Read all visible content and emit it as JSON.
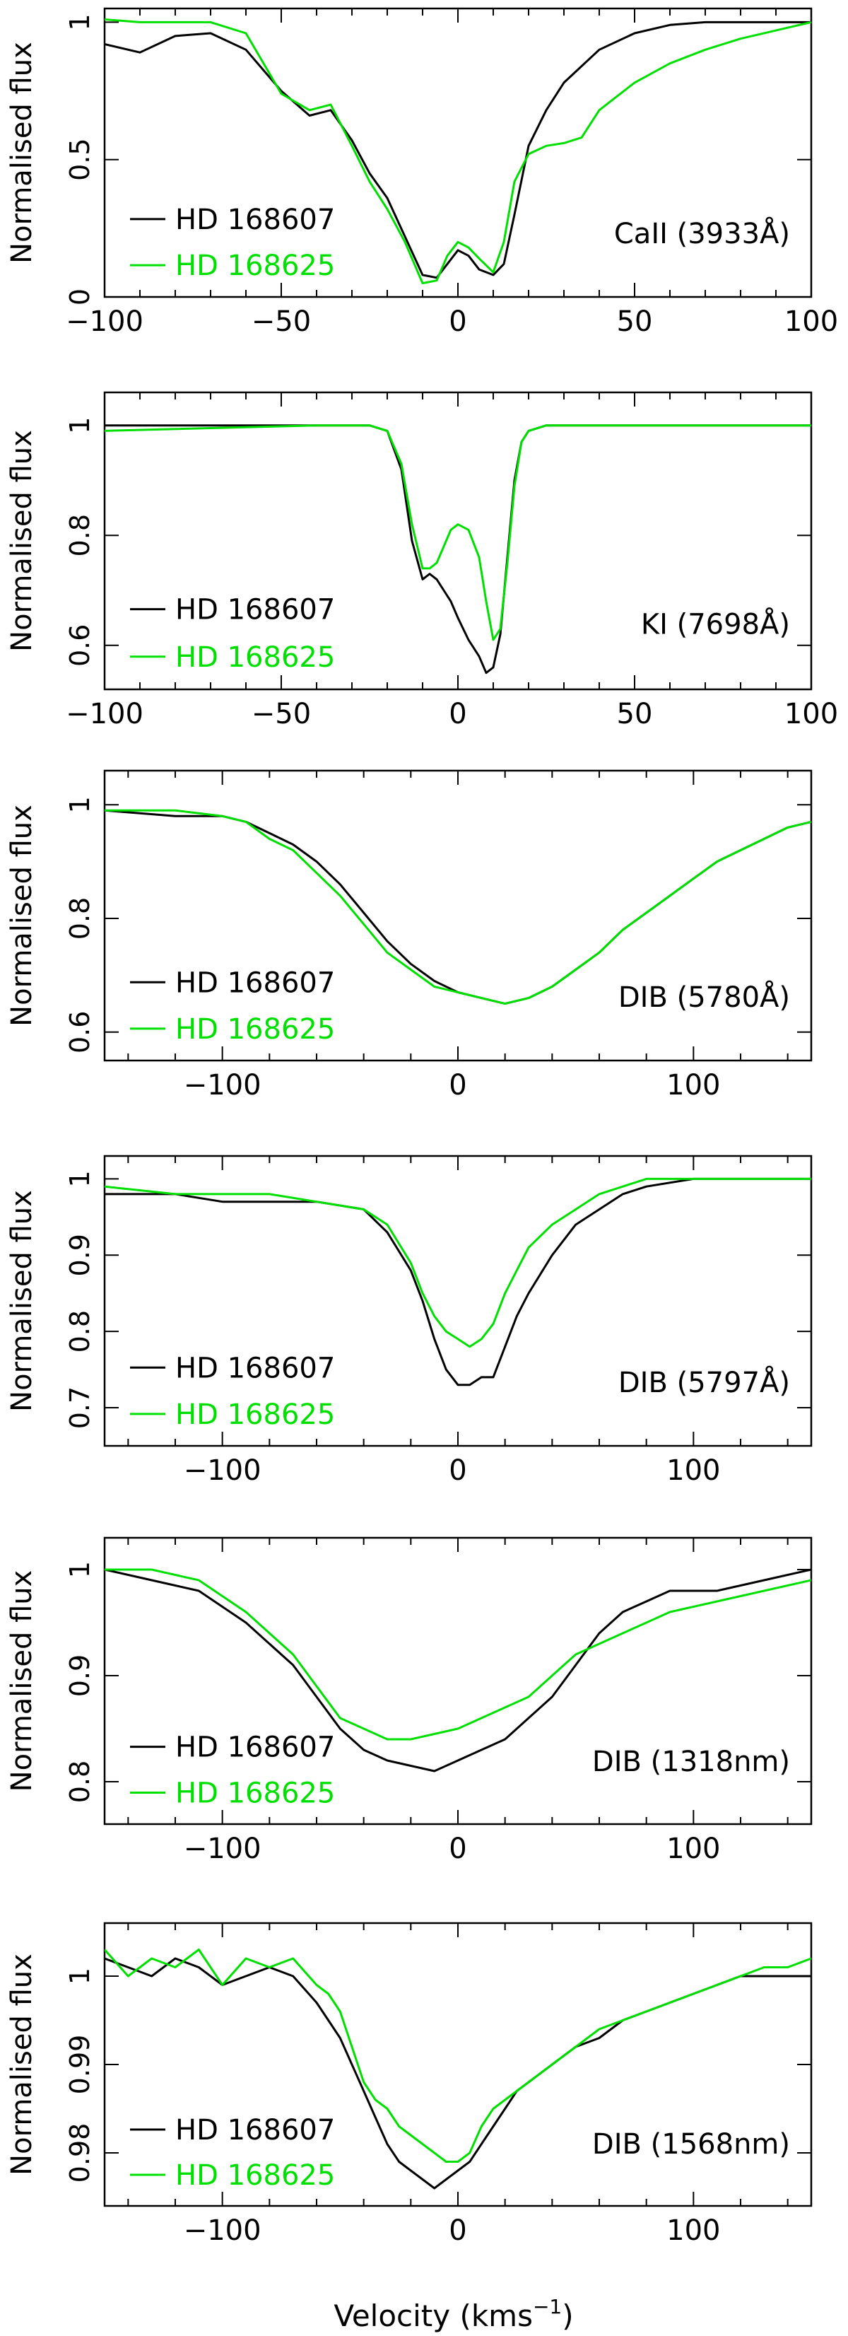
{
  "figure": {
    "xlabel": "Velocity (kms",
    "xlabel_sup": "−1",
    "xlabel_close": ")"
  },
  "chart_data": [
    {
      "type": "line",
      "ylabel": "Normalised flux",
      "label": "CaII (3933Å)",
      "xlim": [
        -100,
        100
      ],
      "ylim": [
        0,
        1.05
      ],
      "xticks": [
        -100,
        -50,
        0,
        50,
        100
      ],
      "yticks": [
        0,
        0.5,
        1
      ],
      "series": [
        {
          "name": "HD 168607",
          "color": "#000000",
          "x": [
            -100,
            -90,
            -80,
            -70,
            -60,
            -50,
            -42,
            -36,
            -30,
            -25,
            -20,
            -15,
            -10,
            -6,
            -3,
            0,
            3,
            6,
            10,
            13,
            16,
            20,
            25,
            30,
            40,
            50,
            60,
            70,
            80,
            90,
            100
          ],
          "y": [
            0.92,
            0.89,
            0.95,
            0.96,
            0.9,
            0.75,
            0.66,
            0.68,
            0.57,
            0.45,
            0.36,
            0.22,
            0.08,
            0.07,
            0.12,
            0.17,
            0.15,
            0.1,
            0.08,
            0.12,
            0.3,
            0.55,
            0.68,
            0.78,
            0.9,
            0.96,
            0.99,
            1.0,
            1.0,
            1.0,
            1.0
          ]
        },
        {
          "name": "HD 168625",
          "color": "#00e000",
          "x": [
            -100,
            -90,
            -80,
            -70,
            -60,
            -50,
            -42,
            -36,
            -30,
            -25,
            -20,
            -15,
            -10,
            -6,
            -3,
            0,
            3,
            6,
            10,
            13,
            16,
            20,
            25,
            30,
            35,
            40,
            50,
            60,
            70,
            80,
            90,
            100
          ],
          "y": [
            1.01,
            1.0,
            1.0,
            1.0,
            0.96,
            0.74,
            0.68,
            0.7,
            0.55,
            0.42,
            0.32,
            0.2,
            0.05,
            0.06,
            0.15,
            0.2,
            0.18,
            0.14,
            0.09,
            0.2,
            0.42,
            0.52,
            0.55,
            0.56,
            0.58,
            0.68,
            0.78,
            0.85,
            0.9,
            0.94,
            0.97,
            1.0
          ]
        }
      ]
    },
    {
      "type": "line",
      "ylabel": "Normalised flux",
      "label": "KI (7698Å)",
      "xlim": [
        -100,
        100
      ],
      "ylim": [
        0.52,
        1.06
      ],
      "xticks": [
        -100,
        -50,
        0,
        50,
        100
      ],
      "yticks": [
        0.6,
        0.8,
        1
      ],
      "series": [
        {
          "name": "HD 168607",
          "color": "#000000",
          "x": [
            -100,
            -40,
            -25,
            -20,
            -16,
            -13,
            -10,
            -8,
            -6,
            -4,
            -2,
            0,
            3,
            6,
            8,
            10,
            12,
            14,
            16,
            18,
            20,
            25,
            40,
            100
          ],
          "y": [
            1.0,
            1.0,
            1.0,
            0.99,
            0.92,
            0.79,
            0.72,
            0.73,
            0.72,
            0.7,
            0.68,
            0.65,
            0.61,
            0.58,
            0.55,
            0.56,
            0.62,
            0.76,
            0.9,
            0.97,
            0.99,
            1.0,
            1.0,
            1.0
          ]
        },
        {
          "name": "HD 168625",
          "color": "#00e000",
          "x": [
            -100,
            -40,
            -25,
            -20,
            -16,
            -13,
            -10,
            -8,
            -6,
            -4,
            -2,
            0,
            3,
            6,
            8,
            10,
            12,
            14,
            16,
            18,
            20,
            25,
            40,
            100
          ],
          "y": [
            0.99,
            1.0,
            1.0,
            0.99,
            0.93,
            0.82,
            0.74,
            0.74,
            0.75,
            0.78,
            0.81,
            0.82,
            0.81,
            0.76,
            0.68,
            0.61,
            0.63,
            0.75,
            0.89,
            0.97,
            0.99,
            1.0,
            1.0,
            1.0
          ]
        }
      ]
    },
    {
      "type": "line",
      "ylabel": "Normalised flux",
      "label": "DIB (5780Å)",
      "xlim": [
        -150,
        150
      ],
      "ylim": [
        0.55,
        1.06
      ],
      "xticks": [
        -100,
        0,
        100
      ],
      "yticks": [
        0.6,
        0.8,
        1
      ],
      "series": [
        {
          "name": "HD 168607",
          "color": "#000000",
          "x": [
            -150,
            -120,
            -100,
            -90,
            -80,
            -70,
            -60,
            -50,
            -40,
            -30,
            -20,
            -10,
            0,
            10,
            20,
            30,
            40,
            50,
            60,
            70,
            80,
            90,
            100,
            110,
            120,
            130,
            140,
            150
          ],
          "y": [
            0.99,
            0.98,
            0.98,
            0.97,
            0.95,
            0.93,
            0.9,
            0.86,
            0.81,
            0.76,
            0.72,
            0.69,
            0.67,
            0.66,
            0.65,
            0.66,
            0.68,
            0.71,
            0.74,
            0.78,
            0.81,
            0.84,
            0.87,
            0.9,
            0.92,
            0.94,
            0.96,
            0.97
          ]
        },
        {
          "name": "HD 168625",
          "color": "#00e000",
          "x": [
            -150,
            -120,
            -100,
            -90,
            -80,
            -70,
            -60,
            -50,
            -40,
            -30,
            -20,
            -10,
            0,
            10,
            20,
            30,
            40,
            50,
            60,
            70,
            80,
            90,
            100,
            110,
            120,
            130,
            140,
            150
          ],
          "y": [
            0.99,
            0.99,
            0.98,
            0.97,
            0.94,
            0.92,
            0.88,
            0.84,
            0.79,
            0.74,
            0.71,
            0.68,
            0.67,
            0.66,
            0.65,
            0.66,
            0.68,
            0.71,
            0.74,
            0.78,
            0.81,
            0.84,
            0.87,
            0.9,
            0.92,
            0.94,
            0.96,
            0.97
          ]
        }
      ]
    },
    {
      "type": "line",
      "ylabel": "Normalised flux",
      "label": "DIB (5797Å)",
      "xlim": [
        -150,
        150
      ],
      "ylim": [
        0.65,
        1.03
      ],
      "xticks": [
        -100,
        0,
        100
      ],
      "yticks": [
        0.7,
        0.8,
        0.9,
        1
      ],
      "series": [
        {
          "name": "HD 168607",
          "color": "#000000",
          "x": [
            -150,
            -120,
            -100,
            -80,
            -60,
            -40,
            -30,
            -20,
            -15,
            -10,
            -5,
            0,
            5,
            10,
            15,
            20,
            25,
            30,
            40,
            50,
            60,
            70,
            80,
            100,
            120,
            150
          ],
          "y": [
            0.98,
            0.98,
            0.97,
            0.97,
            0.97,
            0.96,
            0.93,
            0.88,
            0.84,
            0.79,
            0.75,
            0.73,
            0.73,
            0.74,
            0.74,
            0.78,
            0.82,
            0.85,
            0.9,
            0.94,
            0.96,
            0.98,
            0.99,
            1.0,
            1.0,
            1.0
          ]
        },
        {
          "name": "HD 168625",
          "color": "#00e000",
          "x": [
            -150,
            -120,
            -100,
            -80,
            -60,
            -40,
            -30,
            -20,
            -15,
            -10,
            -5,
            0,
            5,
            10,
            15,
            20,
            25,
            30,
            40,
            50,
            60,
            70,
            80,
            100,
            120,
            150
          ],
          "y": [
            0.99,
            0.98,
            0.98,
            0.98,
            0.97,
            0.96,
            0.94,
            0.89,
            0.85,
            0.82,
            0.8,
            0.79,
            0.78,
            0.79,
            0.81,
            0.85,
            0.88,
            0.91,
            0.94,
            0.96,
            0.98,
            0.99,
            1.0,
            1.0,
            1.0,
            1.0
          ]
        }
      ]
    },
    {
      "type": "line",
      "ylabel": "Normalised flux",
      "label": "DIB (1318nm)",
      "xlim": [
        -150,
        150
      ],
      "ylim": [
        0.76,
        1.03
      ],
      "xticks": [
        -100,
        0,
        100
      ],
      "yticks": [
        0.8,
        0.9,
        1
      ],
      "series": [
        {
          "name": "HD 168607",
          "color": "#000000",
          "x": [
            -150,
            -130,
            -110,
            -90,
            -70,
            -60,
            -50,
            -40,
            -30,
            -20,
            -10,
            0,
            10,
            20,
            30,
            40,
            50,
            60,
            70,
            80,
            90,
            110,
            130,
            150
          ],
          "y": [
            1.0,
            0.99,
            0.98,
            0.95,
            0.91,
            0.88,
            0.85,
            0.83,
            0.82,
            0.815,
            0.81,
            0.82,
            0.83,
            0.84,
            0.86,
            0.88,
            0.91,
            0.94,
            0.96,
            0.97,
            0.98,
            0.98,
            0.99,
            1.0
          ]
        },
        {
          "name": "HD 168625",
          "color": "#00e000",
          "x": [
            -150,
            -130,
            -110,
            -90,
            -70,
            -60,
            -50,
            -40,
            -30,
            -20,
            -10,
            0,
            10,
            20,
            30,
            40,
            50,
            60,
            70,
            80,
            90,
            110,
            130,
            150
          ],
          "y": [
            1.0,
            1.0,
            0.99,
            0.96,
            0.92,
            0.89,
            0.86,
            0.85,
            0.84,
            0.84,
            0.845,
            0.85,
            0.86,
            0.87,
            0.88,
            0.9,
            0.92,
            0.93,
            0.94,
            0.95,
            0.96,
            0.97,
            0.98,
            0.99
          ]
        }
      ]
    },
    {
      "type": "line",
      "ylabel": "Normalised flux",
      "label": "DIB (1568nm)",
      "xlim": [
        -150,
        150
      ],
      "ylim": [
        0.974,
        1.006
      ],
      "xticks": [
        -100,
        0,
        100
      ],
      "yticks": [
        0.98,
        0.99,
        1
      ],
      "series": [
        {
          "name": "HD 168607",
          "color": "#000000",
          "x": [
            -150,
            -140,
            -130,
            -120,
            -110,
            -100,
            -90,
            -80,
            -70,
            -60,
            -55,
            -50,
            -45,
            -40,
            -35,
            -30,
            -25,
            -20,
            -15,
            -10,
            -5,
            0,
            5,
            10,
            15,
            20,
            25,
            30,
            40,
            50,
            60,
            70,
            80,
            90,
            100,
            110,
            120,
            130,
            140,
            150
          ],
          "y": [
            1.002,
            1.001,
            1.0,
            1.002,
            1.001,
            0.999,
            1.0,
            1.001,
            1.0,
            0.997,
            0.995,
            0.993,
            0.99,
            0.987,
            0.984,
            0.981,
            0.979,
            0.978,
            0.977,
            0.976,
            0.977,
            0.978,
            0.979,
            0.981,
            0.983,
            0.985,
            0.987,
            0.988,
            0.99,
            0.992,
            0.993,
            0.995,
            0.996,
            0.997,
            0.998,
            0.999,
            1.0,
            1.0,
            1.0,
            1.0
          ]
        },
        {
          "name": "HD 168625",
          "color": "#00e000",
          "x": [
            -150,
            -140,
            -130,
            -120,
            -110,
            -100,
            -90,
            -80,
            -70,
            -60,
            -55,
            -50,
            -45,
            -40,
            -35,
            -30,
            -25,
            -20,
            -15,
            -10,
            -5,
            0,
            5,
            10,
            15,
            20,
            25,
            30,
            40,
            50,
            60,
            70,
            80,
            90,
            100,
            110,
            120,
            130,
            140,
            150
          ],
          "y": [
            1.003,
            1.0,
            1.002,
            1.001,
            1.003,
            0.999,
            1.002,
            1.001,
            1.002,
            0.999,
            0.998,
            0.996,
            0.992,
            0.988,
            0.986,
            0.985,
            0.983,
            0.982,
            0.981,
            0.98,
            0.979,
            0.979,
            0.98,
            0.983,
            0.985,
            0.986,
            0.987,
            0.988,
            0.99,
            0.992,
            0.994,
            0.995,
            0.996,
            0.997,
            0.998,
            0.999,
            1.0,
            1.001,
            1.001,
            1.002
          ]
        }
      ]
    }
  ]
}
